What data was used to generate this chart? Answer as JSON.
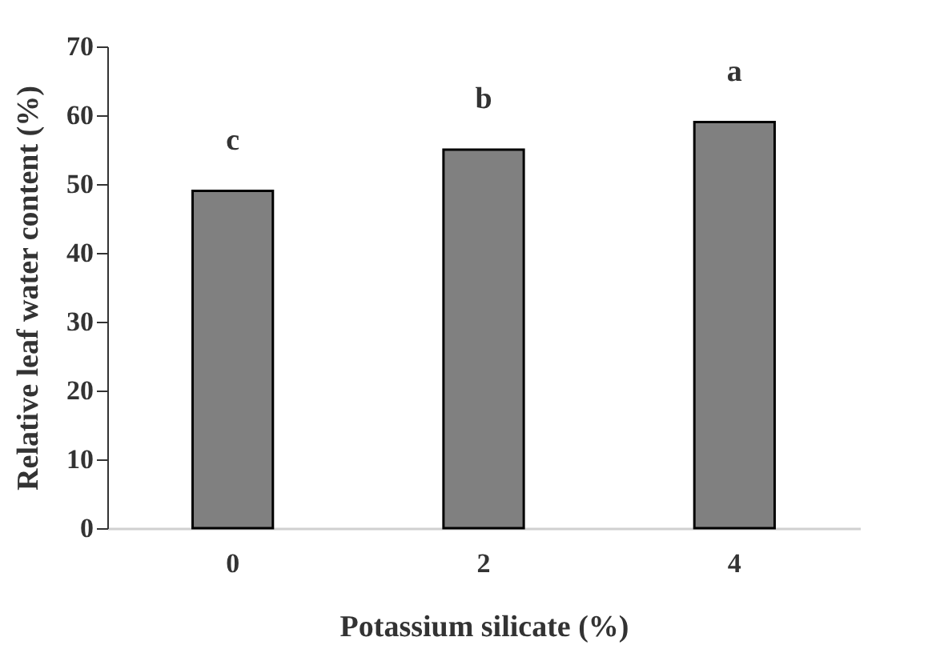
{
  "chart_data": {
    "type": "bar",
    "xlabel": "Potassium silicate (%)",
    "ylabel": "Relative leaf water content (%)",
    "categories": [
      "0",
      "2",
      "4"
    ],
    "values": [
      49,
      55,
      59
    ],
    "color": "#808080",
    "ylim": [
      0,
      70
    ],
    "yticks": [
      0,
      10,
      20,
      30,
      40,
      50,
      60,
      70
    ],
    "grid": false,
    "annotations": [
      {
        "text": "c",
        "x": "0",
        "y": 49
      },
      {
        "text": "b",
        "x": "2",
        "y": 55
      },
      {
        "text": "a",
        "x": "4",
        "y": 59
      }
    ]
  }
}
